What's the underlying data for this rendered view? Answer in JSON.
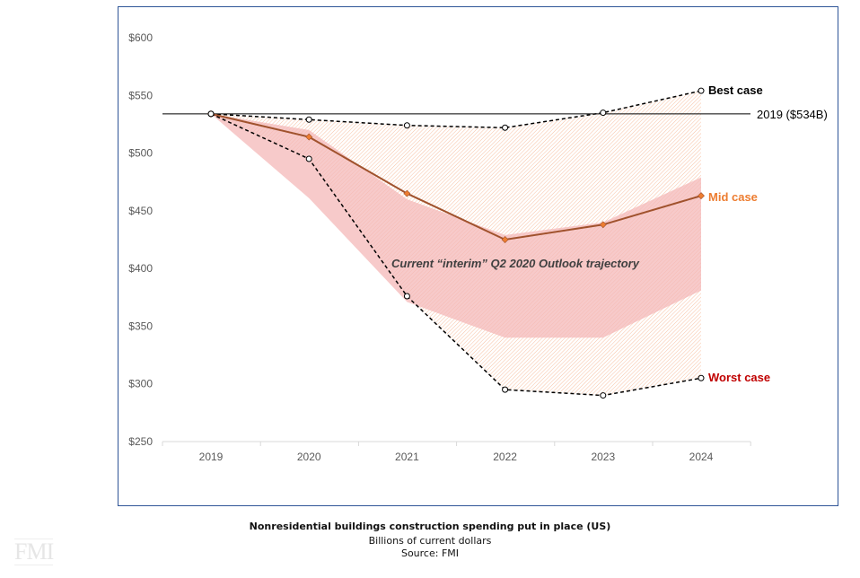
{
  "chart_data": {
    "type": "line",
    "title": "Nonresidential buildings construction spending put in place (US)",
    "subtitle": "Billions of current dollars",
    "source": "Source: FMI",
    "categories": [
      "2019",
      "2020",
      "2021",
      "2022",
      "2023",
      "2024"
    ],
    "ylim": [
      250,
      600
    ],
    "yticks": [
      250,
      300,
      350,
      400,
      450,
      500,
      550,
      600
    ],
    "ytick_labels": [
      "$250",
      "$300",
      "$350",
      "$400",
      "$450",
      "$500",
      "$550",
      "$600"
    ],
    "grid": false,
    "series": [
      {
        "name": "Best case",
        "values": [
          534,
          529,
          524,
          522,
          535,
          554
        ],
        "color": "#000000",
        "style": "dashed"
      },
      {
        "name": "Mid case",
        "values": [
          534,
          514,
          465,
          425,
          438,
          463
        ],
        "color": "#a0522d",
        "label_color": "#ed7d31",
        "style": "solid"
      },
      {
        "name": "Worst case",
        "values": [
          534,
          495,
          376,
          295,
          290,
          305
        ],
        "color": "#000000",
        "label_color": "#c00000",
        "style": "dashed"
      }
    ],
    "band": {
      "label": "Current “interim” Q2 2020 Outlook trajectory",
      "upper": [
        534,
        520,
        460,
        429,
        440,
        479
      ],
      "lower": [
        534,
        461,
        371,
        340,
        340,
        381
      ],
      "color": "#f4b8b8"
    },
    "reference_line": {
      "value": 534,
      "label": "2019 ($534B)"
    },
    "hatch_color": "#f8c8a8"
  },
  "logo": "FMI"
}
